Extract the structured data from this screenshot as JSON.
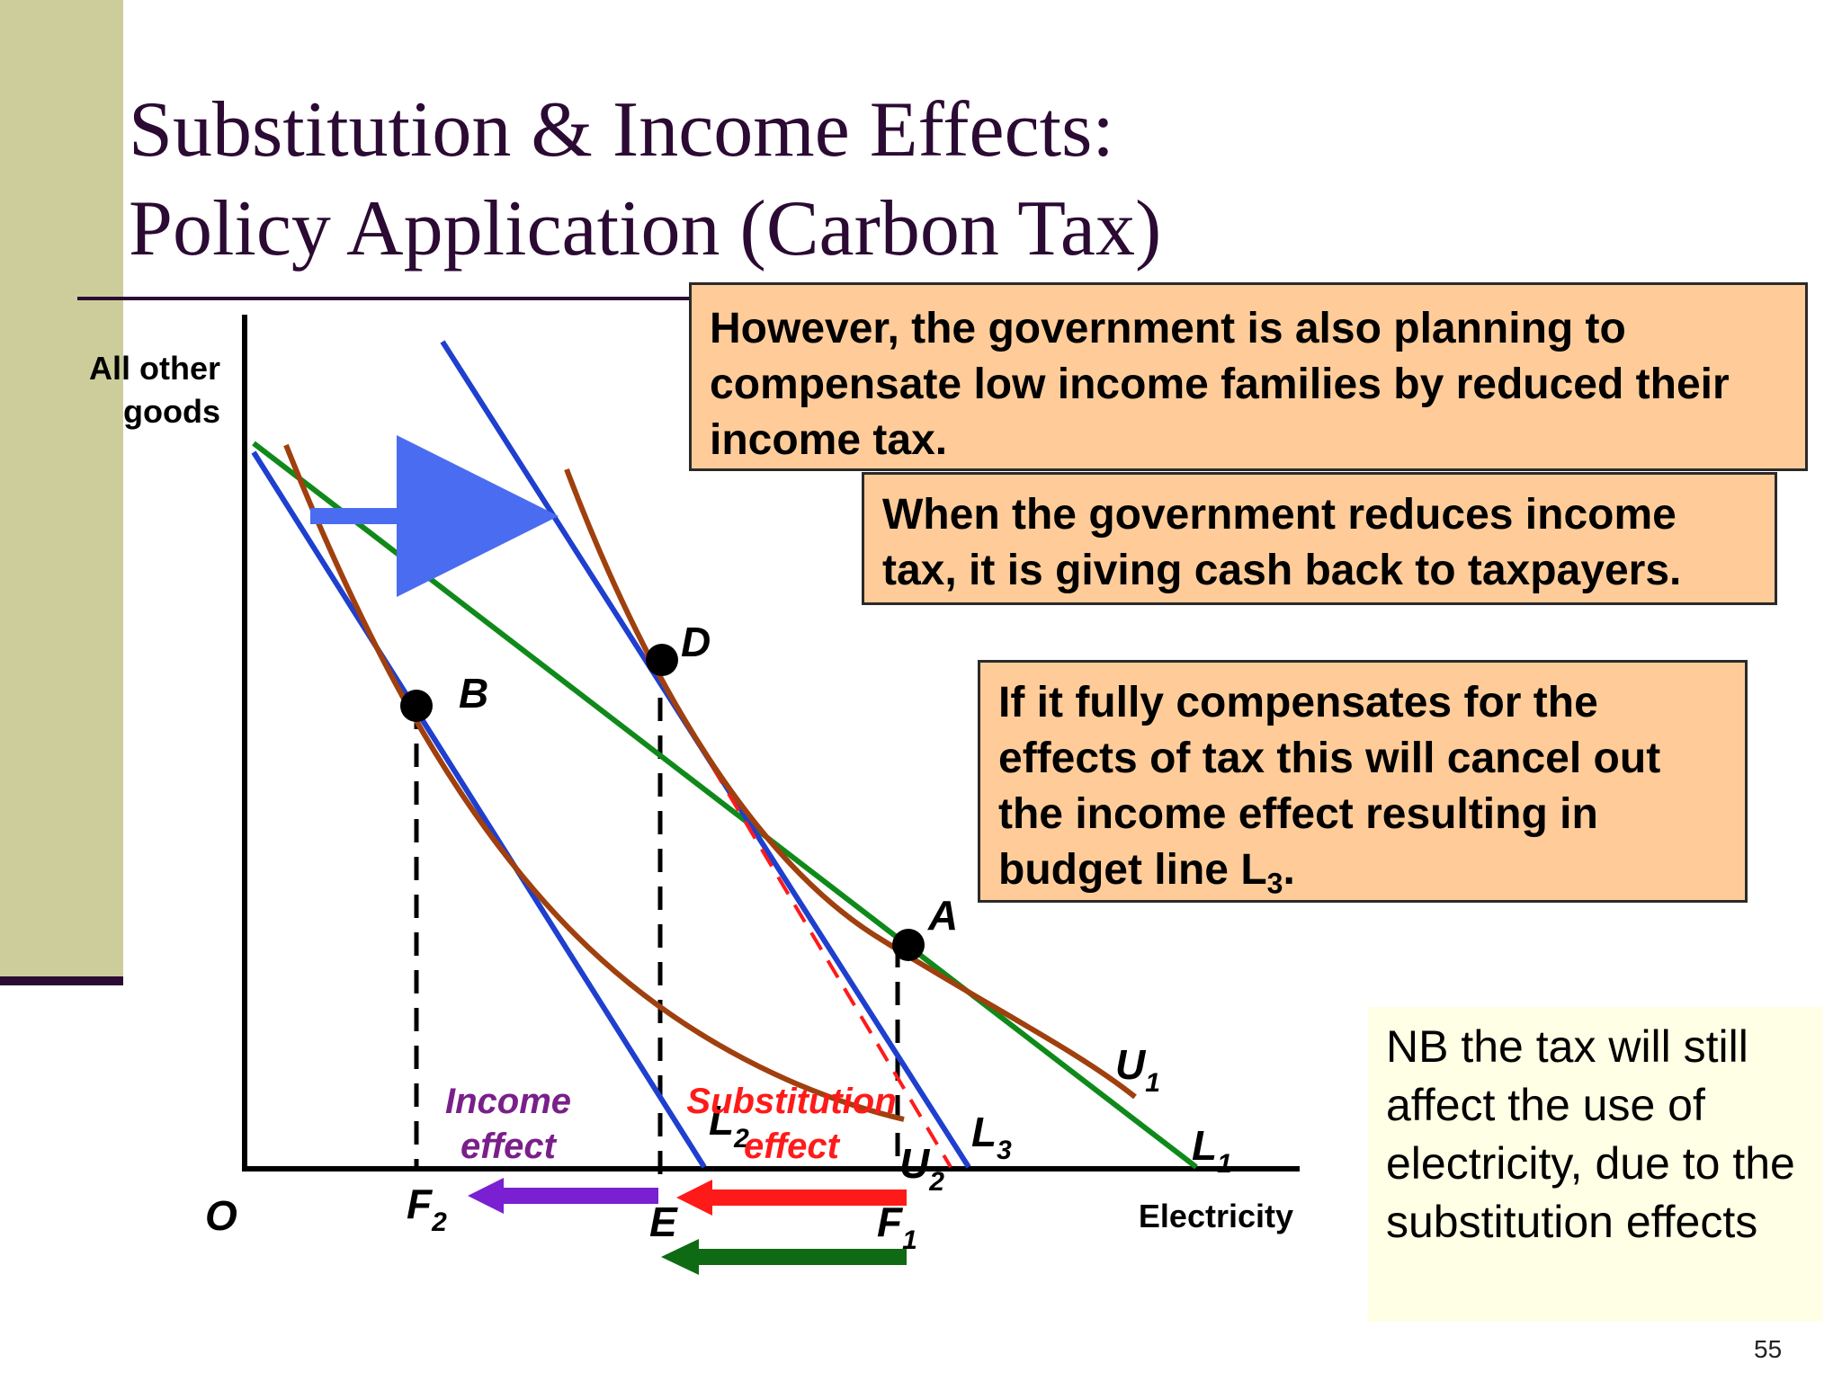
{
  "slide": {
    "title_line1": "Substitution & Income Effects:",
    "title_line2": "Policy Application (Carbon Tax)",
    "page_number": "55"
  },
  "colors": {
    "sidebar": "#cdcd9b",
    "title_text": "#2b0a33",
    "note_fill": "#ffcc99",
    "nb_fill": "#ffffe5",
    "budget_blue": "#1f3fcf",
    "budget_green": "#0f8a1a",
    "indifference_brown": "#a0400e",
    "income_purple": "#7a1fd1",
    "substitution_red": "#ff1a1a",
    "total_green": "#0e6b14",
    "shift_arrow_blue": "#4a6cf0"
  },
  "axes": {
    "y_label_line1": "All other",
    "y_label_line2": "goods",
    "x_label": "Electricity",
    "origin": "O"
  },
  "points": {
    "B": "B",
    "D": "D",
    "A": "A"
  },
  "quantity_labels": {
    "F2_base": "F",
    "F2_sub": "2",
    "E": "E",
    "F1_base": "F",
    "F1_sub": "1"
  },
  "curve_labels": {
    "U1_base": "U",
    "U1_sub": "1",
    "U2_base": "U",
    "U2_sub": "2",
    "L1_base": "L",
    "L1_sub": "1",
    "L2_base": "L",
    "L2_sub": "2",
    "L3_base": "L",
    "L3_sub": "3"
  },
  "effects": {
    "income_line1": "Income",
    "income_line2": "effect",
    "substitution_line1": "Substitution",
    "substitution_line2": "effect"
  },
  "notes": {
    "note1": "However, the government is also planning to compensate low income families by reduced their income tax.",
    "note2": "When the government reduces income tax, it is giving cash back to taxpayers.",
    "note3_main": "If it fully compensates for the effects of tax this will cancel out the income effect resulting in budget line L",
    "note3_sub": "3",
    "note3_end": ".",
    "nb": "NB the tax will still affect the use of electricity, due to the substitution effects"
  }
}
